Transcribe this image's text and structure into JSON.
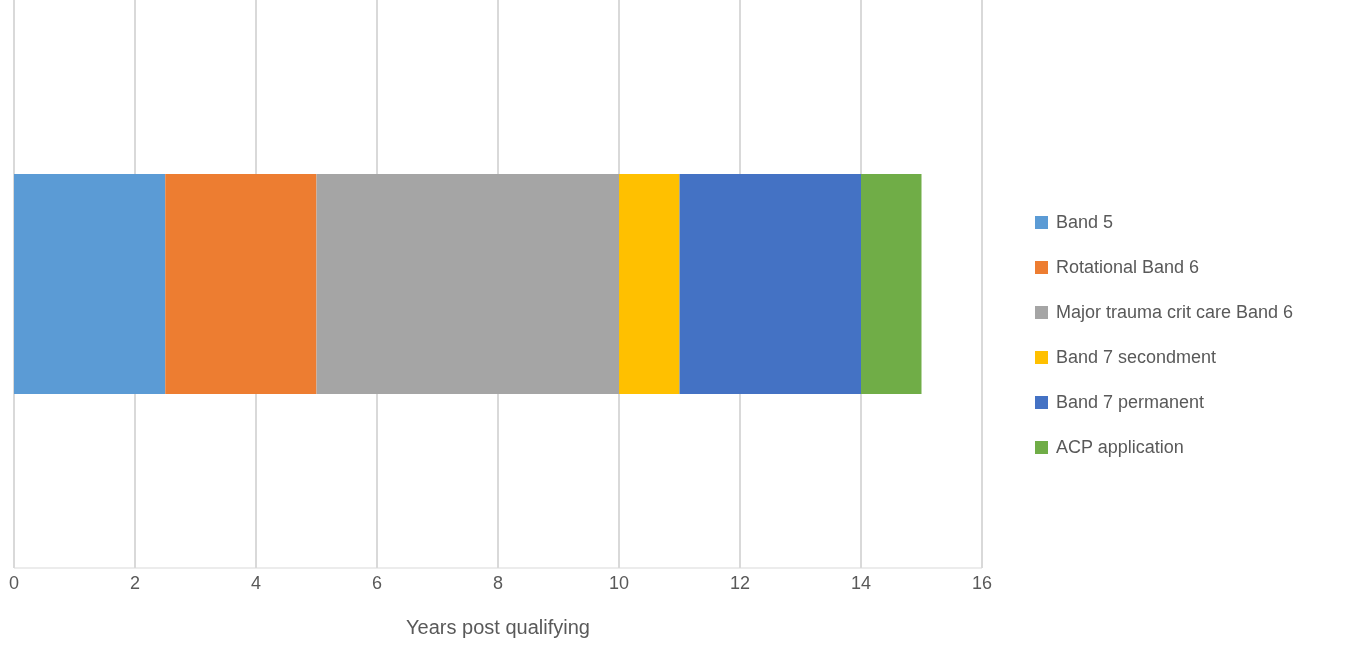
{
  "chart_data": {
    "type": "bar",
    "orientation": "horizontal",
    "stacked": true,
    "xlabel": "Years post qualifying",
    "categories": [
      null
    ],
    "series": [
      {
        "name": "Band 5",
        "color": "#5b9bd5",
        "values": [
          2.5
        ]
      },
      {
        "name": "Rotational Band 6",
        "color": "#ed7d31",
        "values": [
          2.5
        ]
      },
      {
        "name": "Major trauma crit care Band 6",
        "color": "#a5a5a5",
        "values": [
          5
        ]
      },
      {
        "name": "Band 7 secondment",
        "color": "#ffc000",
        "values": [
          1
        ]
      },
      {
        "name": "Band 7 permanent",
        "color": "#4472c4",
        "values": [
          3
        ]
      },
      {
        "name": "ACP application",
        "color": "#70ad47",
        "values": [
          1
        ]
      }
    ],
    "xlim": [
      0,
      16
    ],
    "xticks": [
      0,
      2,
      4,
      6,
      8,
      10,
      12,
      14,
      16
    ],
    "grid": "x",
    "legend": "right"
  }
}
